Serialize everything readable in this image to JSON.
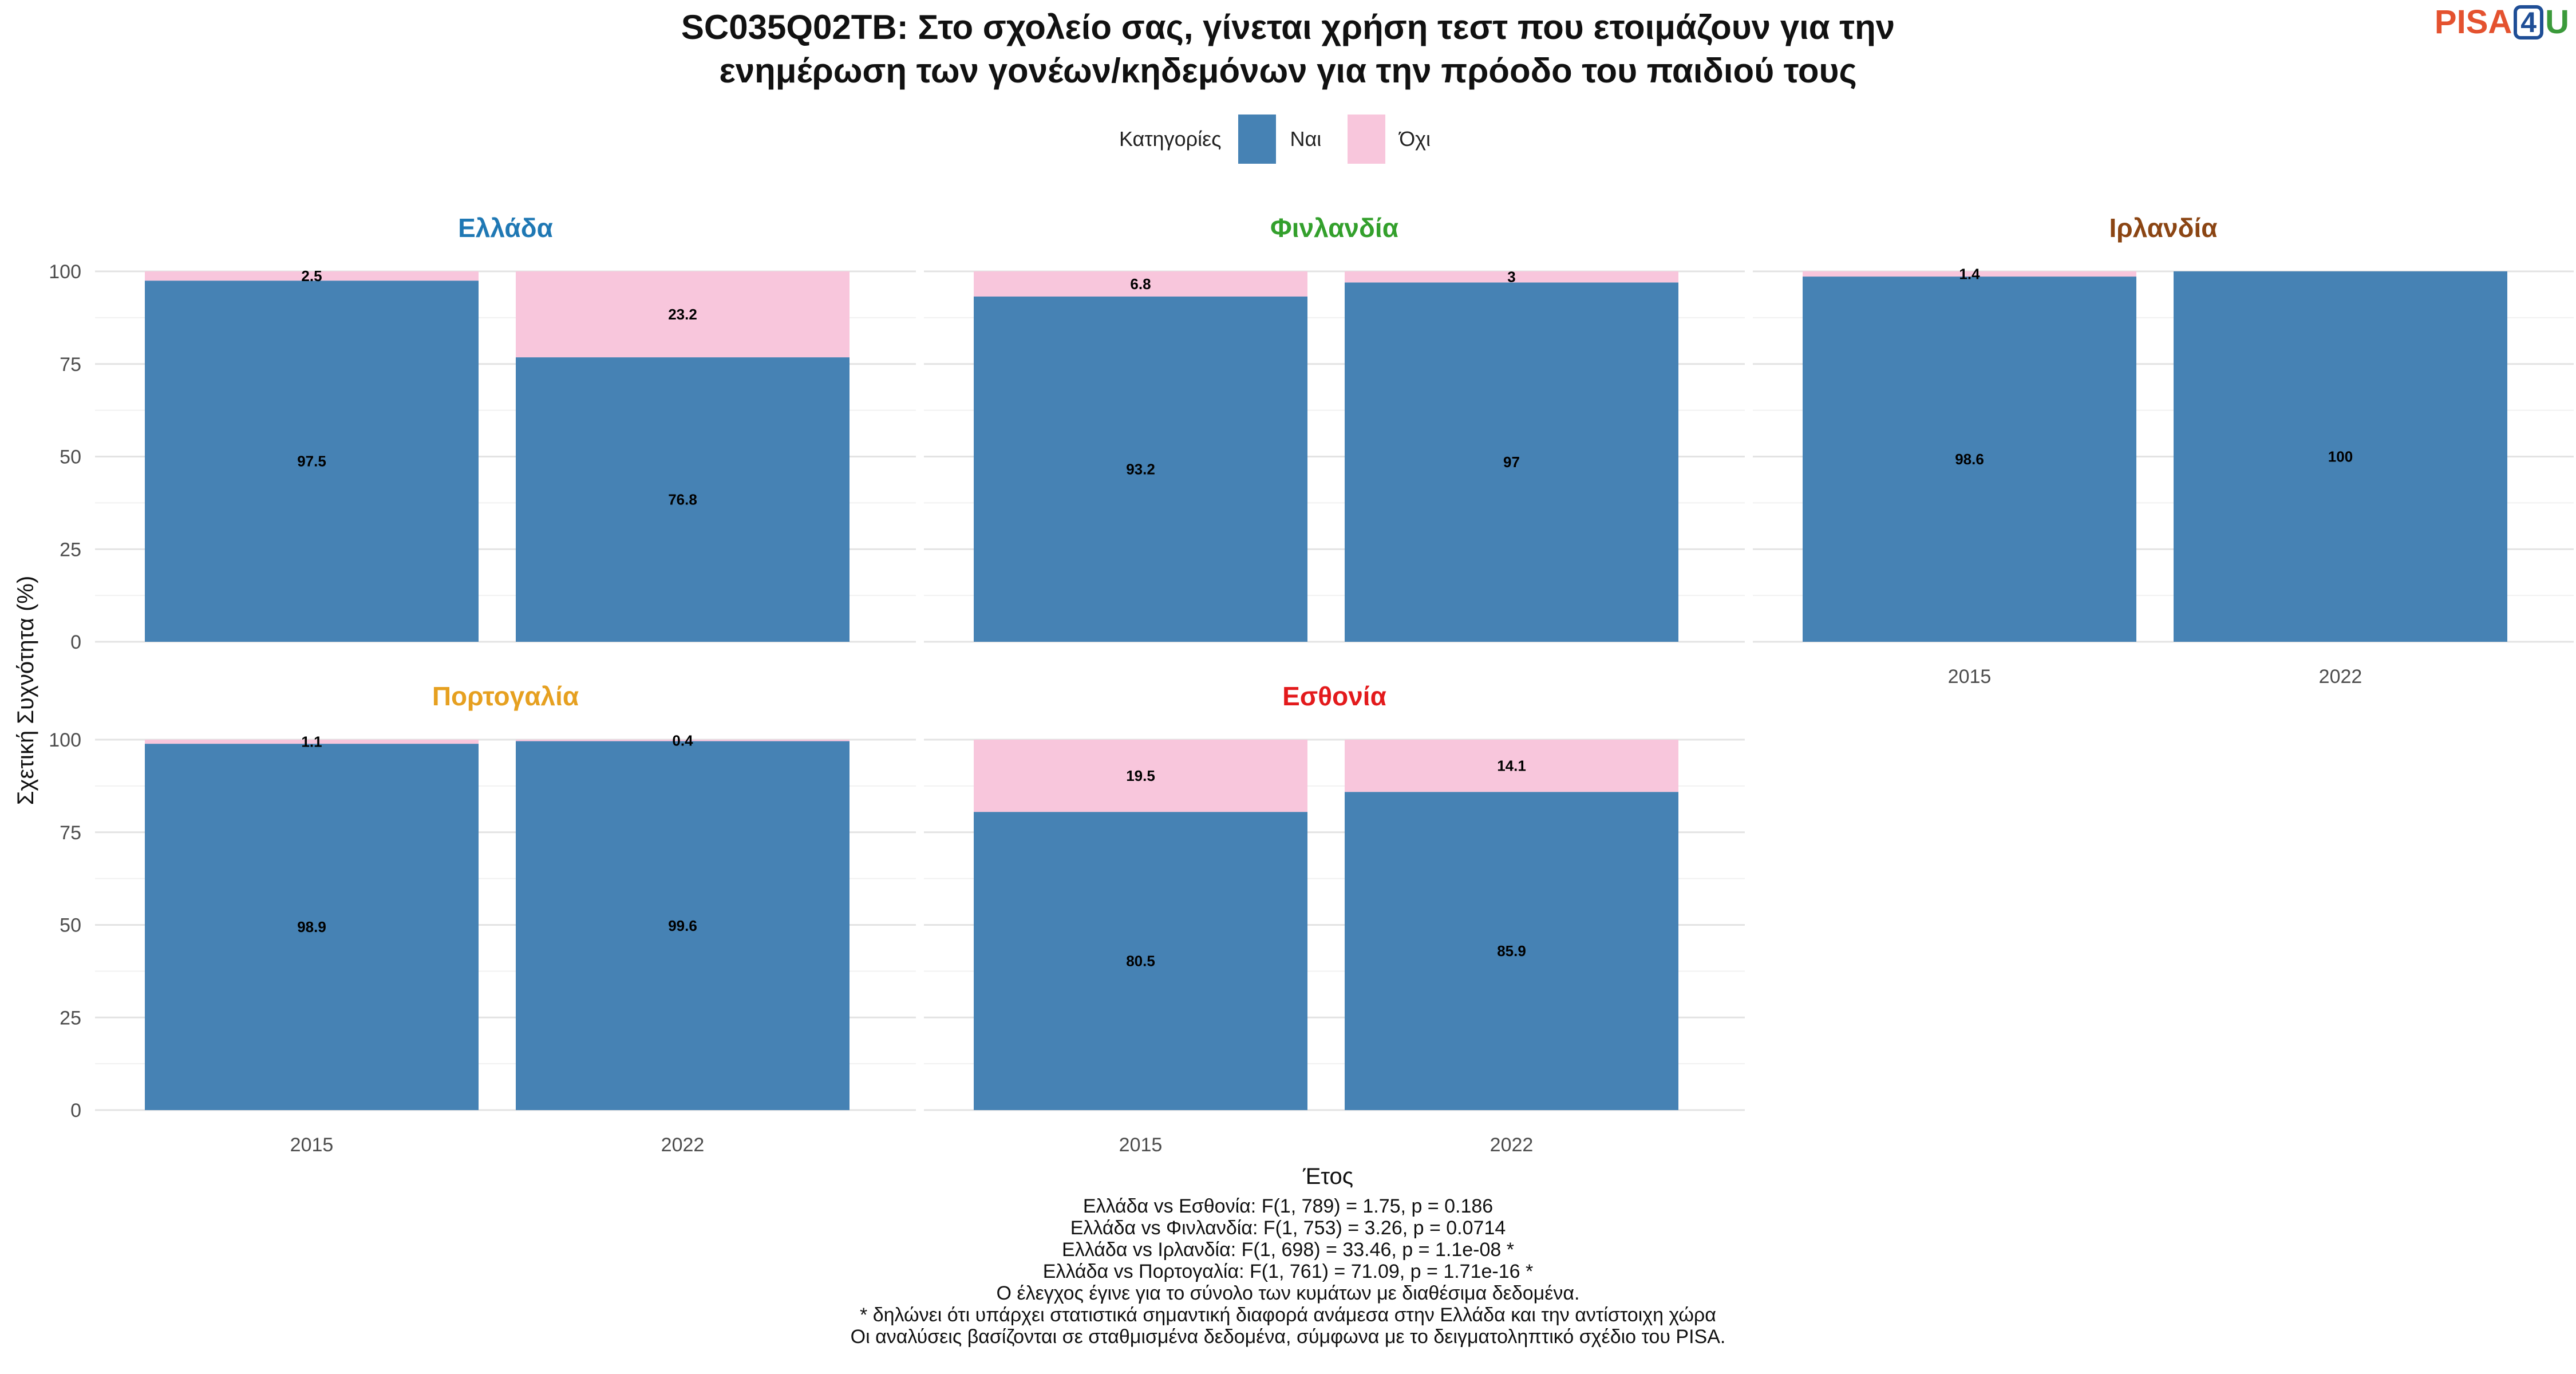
{
  "title_lines": [
    "SC035Q02TB: Στο σχολείο σας, γίνεται χρήση τεστ που ετοιμάζουν για την",
    "ενημέρωση των γονέων/κηδεμόνων για την πρόοδο του παιδιού τους"
  ],
  "logo": {
    "part1": "PISA",
    "part2": "4",
    "part3": "U"
  },
  "legend": {
    "title": "Κατηγορίες",
    "items": [
      {
        "label": "Ναι",
        "color": "#4682b4"
      },
      {
        "label": "Όχι",
        "color": "#f8c6dc"
      }
    ]
  },
  "chart_data": {
    "type": "bar",
    "stacked": true,
    "xlabel": "Έτος",
    "ylabel": "Σχετική Συχνότητα (%)",
    "ylim": [
      0,
      100
    ],
    "yticks": [
      0,
      25,
      50,
      75,
      100
    ],
    "grid": true,
    "categories": [
      "2015",
      "2022"
    ],
    "series_names": [
      "Ναι",
      "Όχι"
    ],
    "series_colors": [
      "#4682b4",
      "#f8c6dc"
    ],
    "panels": [
      {
        "name": "Ελλάδα",
        "color": "#1f78b4",
        "series": [
          {
            "name": "Ναι",
            "values": [
              97.5,
              76.8
            ],
            "labels": [
              "97.5",
              "76.8"
            ]
          },
          {
            "name": "Όχι",
            "values": [
              2.5,
              23.2
            ],
            "labels": [
              "2.5",
              "23.2"
            ]
          }
        ]
      },
      {
        "name": "Φινλανδία",
        "color": "#33a02c",
        "series": [
          {
            "name": "Ναι",
            "values": [
              93.2,
              97
            ],
            "labels": [
              "93.2",
              "97"
            ]
          },
          {
            "name": "Όχι",
            "values": [
              6.8,
              3
            ],
            "labels": [
              "6.8",
              "3"
            ]
          }
        ]
      },
      {
        "name": "Ιρλανδία",
        "color": "#8b4513",
        "series": [
          {
            "name": "Ναι",
            "values": [
              98.6,
              100
            ],
            "labels": [
              "98.6",
              "100"
            ]
          },
          {
            "name": "Όχι",
            "values": [
              1.4,
              0
            ],
            "labels": [
              "1.4",
              ""
            ]
          }
        ]
      },
      {
        "name": "Πορτογαλία",
        "color": "#e6a020",
        "series": [
          {
            "name": "Ναι",
            "values": [
              98.9,
              99.6
            ],
            "labels": [
              "98.9",
              "99.6"
            ]
          },
          {
            "name": "Όχι",
            "values": [
              1.1,
              0.4
            ],
            "labels": [
              "1.1",
              "0.4"
            ]
          }
        ]
      },
      {
        "name": "Εσθονία",
        "color": "#e31a1c",
        "series": [
          {
            "name": "Ναι",
            "values": [
              80.5,
              85.9
            ],
            "labels": [
              "80.5",
              "85.9"
            ]
          },
          {
            "name": "Όχι",
            "values": [
              19.5,
              14.1
            ],
            "labels": [
              "19.5",
              "14.1"
            ]
          }
        ]
      }
    ]
  },
  "footnotes": [
    "Ελλάδα vs Εσθονία: F(1, 789) = 1.75, p = 0.186",
    "Ελλάδα vs Φινλανδία: F(1, 753) = 3.26, p = 0.0714",
    "Ελλάδα vs Ιρλανδία: F(1, 698) = 33.46, p = 1.1e-08 *",
    "Ελλάδα vs Πορτογαλία: F(1, 761) = 71.09, p = 1.71e-16 *",
    "Ο έλεγχος έγινε για το σύνολο των κυμάτων με διαθέσιμα δεδομένα.",
    "* δηλώνει ότι υπάρχει στατιστικά σημαντική διαφορά ανάμεσα στην Ελλάδα και την αντίστοιχη χώρα",
    "Οι αναλύσεις βασίζονται σε σταθμισμένα δεδομένα, σύμφωνα με το δειγματοληπτικό σχέδιο του PISA."
  ]
}
